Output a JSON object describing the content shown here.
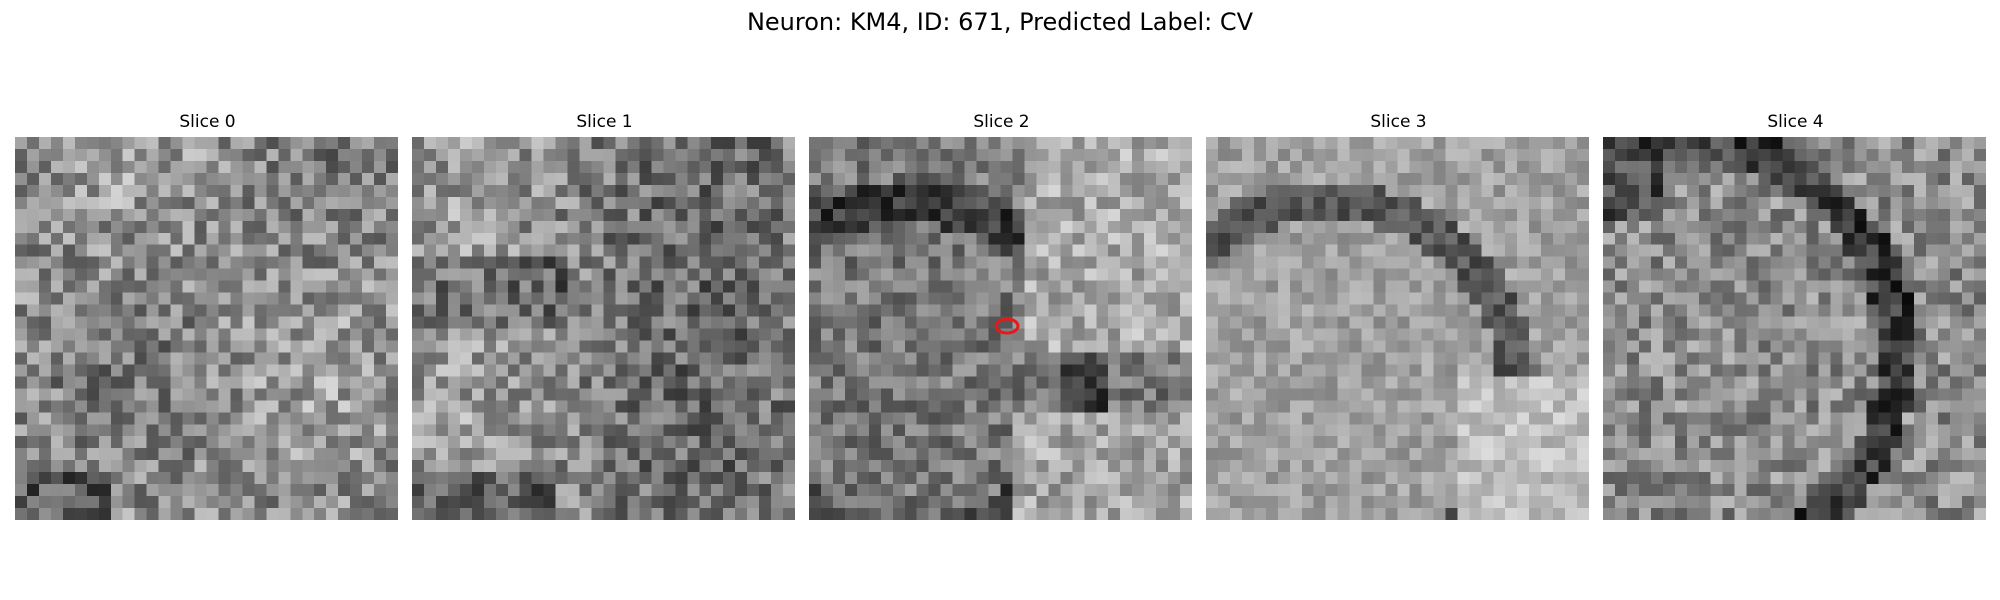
{
  "figure": {
    "title": "Neuron: KM4, ID: 671, Predicted Label: CV"
  },
  "slices": [
    {
      "label": "Slice 0",
      "pattern": "noisy",
      "marker": false
    },
    {
      "label": "Slice 1",
      "pattern": "noisy-dark-bottom",
      "marker": false
    },
    {
      "label": "Slice 2",
      "pattern": "ring-dark",
      "marker": true
    },
    {
      "label": "Slice 3",
      "pattern": "ring-smooth",
      "marker": false
    },
    {
      "label": "Slice 4",
      "pattern": "ring-noisy",
      "marker": false
    }
  ],
  "marker_color": "#e41a1c"
}
